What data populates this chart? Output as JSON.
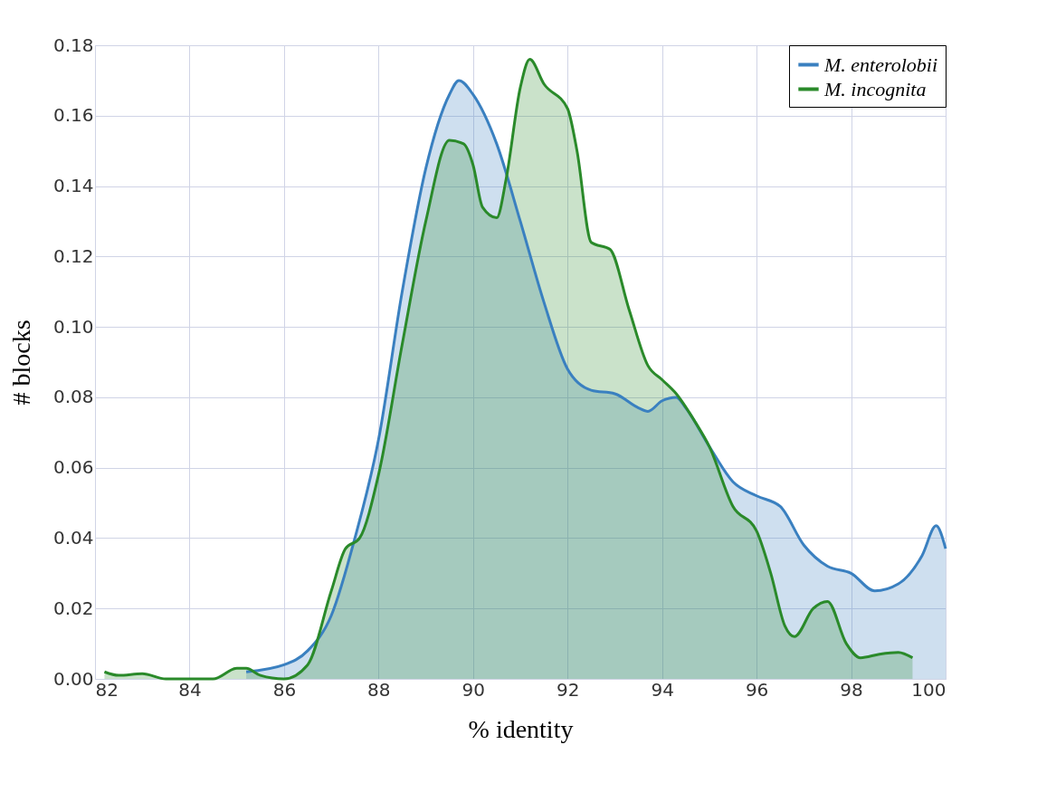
{
  "chart_data": {
    "type": "area",
    "xlabel": "% identity",
    "ylabel": "# blocks",
    "xlim": [
      82,
      100
    ],
    "xticks": [
      82,
      84,
      86,
      88,
      90,
      92,
      94,
      96,
      98,
      100
    ],
    "ylim": [
      0,
      0.18
    ],
    "yticks": [
      {
        "value": 0,
        "label": "0.00"
      },
      {
        "value": 0.02,
        "label": "0.02"
      },
      {
        "value": 0.04,
        "label": "0.04"
      },
      {
        "value": 0.06,
        "label": "0.06"
      },
      {
        "value": 0.08,
        "label": "0.08"
      },
      {
        "value": 0.1,
        "label": "0.10"
      },
      {
        "value": 0.12,
        "label": "0.12"
      },
      {
        "value": 0.14,
        "label": "0.14"
      },
      {
        "value": 0.16,
        "label": "0.16"
      },
      {
        "value": 0.18,
        "label": "0.18"
      }
    ],
    "grid": true,
    "legend": "top right",
    "series": [
      {
        "name": "M. enterolobii",
        "color": "#3a80c0",
        "x": [
          85.2,
          86,
          86.5,
          87,
          87.5,
          88,
          88.5,
          89,
          89.5,
          89.7,
          90,
          90.5,
          91,
          91.5,
          92,
          92.5,
          93,
          93.5,
          93.7,
          94,
          94.3,
          94.5,
          95,
          95.5,
          96,
          96.5,
          97,
          97.5,
          98,
          98.5,
          99,
          99.5,
          99.8,
          100
        ],
        "values": [
          0.002,
          0.004,
          0.008,
          0.018,
          0.04,
          0.068,
          0.11,
          0.145,
          0.166,
          0.17,
          0.166,
          0.152,
          0.13,
          0.107,
          0.088,
          0.082,
          0.081,
          0.077,
          0.076,
          0.079,
          0.08,
          0.077,
          0.066,
          0.056,
          0.052,
          0.049,
          0.038,
          0.032,
          0.03,
          0.025,
          0.027,
          0.035,
          0.0435,
          0.037
        ]
      },
      {
        "name": "M. incognita",
        "color": "#2a8a2a",
        "x": [
          82.2,
          82.5,
          83,
          83.5,
          84,
          84.5,
          85,
          85.2,
          85.5,
          86,
          86.5,
          87,
          87.3,
          87.6,
          88,
          88.5,
          89,
          89.5,
          89.8,
          90,
          90.2,
          90.5,
          90.7,
          91,
          91.2,
          91.5,
          92,
          92.2,
          92.5,
          92.9,
          93.3,
          93.7,
          94,
          94.3,
          94.7,
          95,
          95.5,
          96,
          96.3,
          96.6,
          96.8,
          97.2,
          97.5,
          97.9,
          98.2,
          98.6,
          99,
          99.3
        ],
        "values": [
          0.002,
          0.001,
          0.0015,
          0,
          0,
          0,
          0.003,
          0.003,
          0.001,
          0,
          0.004,
          0.025,
          0.037,
          0.04,
          0.058,
          0.095,
          0.13,
          0.153,
          0.152,
          0.146,
          0.134,
          0.131,
          0.142,
          0.168,
          0.176,
          0.169,
          0.162,
          0.15,
          0.124,
          0.122,
          0.105,
          0.089,
          0.085,
          0.081,
          0.073,
          0.066,
          0.049,
          0.042,
          0.03,
          0.015,
          0.012,
          0.02,
          0.022,
          0.01,
          0.006,
          0.007,
          0.0075,
          0.006
        ]
      }
    ]
  }
}
